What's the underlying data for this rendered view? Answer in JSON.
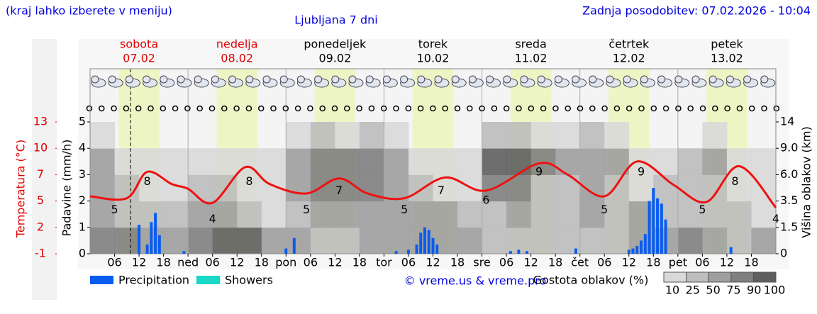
{
  "chart_data": {
    "type": "weather",
    "note": "(kraj lahko izberete v meniju)",
    "title": "Ljubljana 7 dni",
    "updated": "Zadnja posodobitev: 07.02.2026 - 10:04",
    "days": [
      {
        "name": "sobota",
        "date": "07.02",
        "color": "#e00000"
      },
      {
        "name": "nedelja",
        "date": "08.02",
        "color": "#e00000"
      },
      {
        "name": "ponedeljek",
        "date": "09.02",
        "color": "#000000"
      },
      {
        "name": "torek",
        "date": "10.02",
        "color": "#000000"
      },
      {
        "name": "sreda",
        "date": "11.02",
        "color": "#000000"
      },
      {
        "name": "četrtek",
        "date": "12.02",
        "color": "#000000"
      },
      {
        "name": "petek",
        "date": "13.02",
        "color": "#000000"
      }
    ],
    "xlim": [
      0,
      168
    ],
    "xticks": [
      {
        "value": 6,
        "label": "06"
      },
      {
        "value": 12,
        "label": "12"
      },
      {
        "value": 18,
        "label": "18"
      },
      {
        "value": 24,
        "label": "ned"
      },
      {
        "value": 30,
        "label": "06"
      },
      {
        "value": 36,
        "label": "12"
      },
      {
        "value": 42,
        "label": "18"
      },
      {
        "value": 48,
        "label": "pon"
      },
      {
        "value": 54,
        "label": "06"
      },
      {
        "value": 60,
        "label": "12"
      },
      {
        "value": 66,
        "label": "18"
      },
      {
        "value": 72,
        "label": "tor"
      },
      {
        "value": 78,
        "label": "06"
      },
      {
        "value": 84,
        "label": "12"
      },
      {
        "value": 90,
        "label": "18"
      },
      {
        "value": 96,
        "label": "sre"
      },
      {
        "value": 102,
        "label": "06"
      },
      {
        "value": 108,
        "label": "12"
      },
      {
        "value": 114,
        "label": "18"
      },
      {
        "value": 120,
        "label": "čet"
      },
      {
        "value": 126,
        "label": "06"
      },
      {
        "value": 132,
        "label": "12"
      },
      {
        "value": 138,
        "label": "18"
      },
      {
        "value": 144,
        "label": "pet"
      },
      {
        "value": 150,
        "label": "06"
      },
      {
        "value": 156,
        "label": "12"
      },
      {
        "value": 162,
        "label": "18"
      }
    ],
    "ylabel": "Padavine (mm/h)",
    "ylim": [
      0,
      5
    ],
    "yticks": [
      0,
      1,
      2,
      3,
      4,
      5
    ],
    "tlabel": "Temperatura (°C)",
    "tlim": [
      -1,
      13
    ],
    "tticks": [
      -1,
      {
        "value": 1.8,
        "label": "2"
      },
      {
        "value": 4.6,
        "label": "5"
      },
      {
        "value": 7.4,
        "label": "7"
      },
      {
        "value": 10.2,
        "label": "10"
      },
      13
    ],
    "y2label": "Višina oblakov (km)",
    "y2lim": [
      0,
      14
    ],
    "y2ticks": [
      0,
      1.5,
      3.5,
      {
        "value": 6,
        "label": "6.0"
      },
      {
        "value": 9,
        "label": "9.0"
      },
      14
    ],
    "series": [
      {
        "name": "Precipitation",
        "color": "#0a5cf0",
        "x": [
          12,
          14,
          15,
          16,
          17,
          23,
          48,
          50,
          75,
          78,
          80,
          81,
          82,
          83,
          84,
          85,
          103,
          105,
          107,
          119,
          132,
          133,
          134,
          135,
          136,
          137,
          138,
          139,
          140,
          141,
          157
        ],
        "values": [
          1.1,
          0.35,
          1.2,
          1.55,
          0.7,
          0.1,
          0.2,
          0.6,
          0.1,
          0.15,
          0.35,
          0.8,
          1.0,
          0.9,
          0.6,
          0.35,
          0.1,
          0.15,
          0.1,
          0.2,
          0.15,
          0.2,
          0.3,
          0.5,
          0.75,
          2.0,
          2.5,
          2.1,
          1.9,
          1.3,
          0.25
        ]
      },
      {
        "name": "Showers",
        "color": "#18d8c8",
        "x": [],
        "values": []
      }
    ],
    "temperature": {
      "color": "#ee1111",
      "x": [
        0,
        9,
        14,
        20,
        24,
        30,
        38,
        44,
        53,
        61,
        68,
        77,
        87,
        97,
        110,
        117,
        126,
        134,
        143,
        151,
        159,
        168
      ],
      "values": [
        5.1,
        4.9,
        7.7,
        6.4,
        5.9,
        4.4,
        8.2,
        6.4,
        5.4,
        7.0,
        5.4,
        4.9,
        7.1,
        5.7,
        8.6,
        7.4,
        5.1,
        8.8,
        6.3,
        4.5,
        8.3,
        3.9
      ]
    },
    "temp_labels": {
      "x": [
        6,
        14,
        30,
        39,
        53,
        61,
        77,
        86,
        97,
        110,
        126,
        135,
        150,
        158,
        168
      ],
      "values": [
        5,
        8,
        4,
        8,
        5,
        7,
        5,
        7,
        6,
        9,
        5,
        9,
        5,
        8,
        4
      ]
    },
    "cloud": {
      "title": "Gostota oblakov (%)",
      "levels": [
        10,
        25,
        50,
        75,
        90,
        100
      ],
      "colors": [
        "#d9d9d9",
        "#bdbdbd",
        "#9f9f9f",
        "#7f7f7f",
        "#5f5f5f"
      ],
      "density": [
        [
          75,
          75,
          50,
          50,
          75,
          90,
          90,
          50,
          50,
          25,
          25,
          50,
          50,
          50,
          50,
          50,
          25,
          25,
          25,
          25,
          25,
          25,
          50,
          50,
          75,
          50,
          25,
          50
        ],
        [
          50,
          25,
          25,
          25,
          50,
          50,
          25,
          10,
          25,
          50,
          50,
          50,
          50,
          50,
          50,
          25,
          25,
          50,
          25,
          25,
          50,
          25,
          50,
          25,
          25,
          25,
          25,
          10
        ],
        [
          50,
          25,
          10,
          10,
          25,
          25,
          10,
          10,
          50,
          75,
          75,
          75,
          50,
          25,
          10,
          10,
          75,
          75,
          25,
          25,
          50,
          25,
          10,
          25,
          25,
          25,
          10,
          10
        ],
        [
          50,
          10,
          10,
          10,
          10,
          10,
          10,
          10,
          50,
          75,
          75,
          75,
          50,
          10,
          10,
          10,
          90,
          90,
          75,
          50,
          50,
          50,
          10,
          10,
          25,
          50,
          10,
          10
        ],
        [
          10,
          0,
          0,
          0,
          0,
          0,
          0,
          0,
          10,
          25,
          10,
          25,
          10,
          0,
          0,
          0,
          25,
          25,
          10,
          10,
          25,
          10,
          0,
          0,
          0,
          10,
          0,
          0
        ]
      ]
    },
    "credit": "© vreme.us & vreme.pro"
  }
}
